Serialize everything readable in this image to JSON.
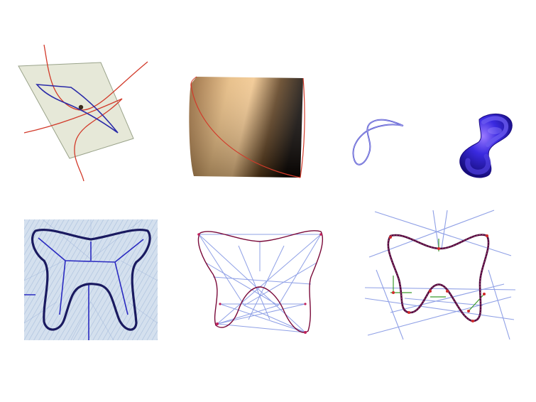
{
  "colors": {
    "plane_fill": "#e6e8d8",
    "plane_edge": "#9aa38a",
    "red_curve": "#d23a2a",
    "blue_curve": "#2a2aa8",
    "copper_light": "#f2c58a",
    "copper_dark": "#1a0f05",
    "tube_blue": "#2a1ad0",
    "medial_bg": "#c7d6ea",
    "light_blue_line": "#8fa0e6",
    "purple_curve": "#7a0a3a",
    "green_seg": "#3a9a2a"
  },
  "icons": [
    "plane-curve-figure",
    "copper-surface-figure",
    "wire-knot-figure",
    "tube-knot-figure",
    "medial-axis-figure",
    "bitangent-chords-figure",
    "tangent-lines-figure"
  ]
}
